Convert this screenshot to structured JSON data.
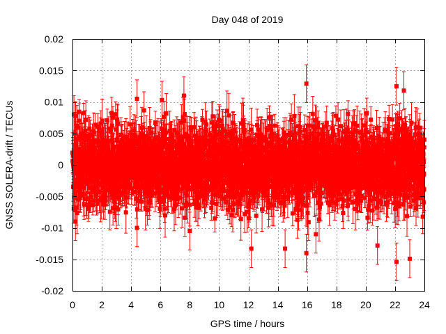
{
  "chart_data": {
    "type": "scatter",
    "title": "Day 048 of 2019",
    "xlabel": "GPS time / hours",
    "ylabel": "GNSS SOLERA-drift / TECUs",
    "xlim": [
      0,
      24
    ],
    "ylim": [
      -0.02,
      0.02
    ],
    "x_ticks": [
      0,
      2,
      4,
      6,
      8,
      10,
      12,
      14,
      16,
      18,
      20,
      22,
      24
    ],
    "x_tick_labels": [
      "0",
      "2",
      "4",
      "6",
      "8",
      "10",
      "12",
      "14",
      "16",
      "18",
      "20",
      "22",
      "24"
    ],
    "y_ticks": [
      -0.02,
      -0.015,
      -0.01,
      -0.005,
      0,
      0.005,
      0.01,
      0.015,
      0.02
    ],
    "y_tick_labels": [
      "-0.02",
      "-0.015",
      "-0.01",
      "-0.005",
      "0",
      "0.005",
      "0.01",
      "0.015",
      "0.02"
    ],
    "grid": true,
    "series": [
      {
        "name": "SOLERA drift",
        "color": "#ff0000",
        "marker": "square",
        "error_bars": true,
        "error_bar_typical": 0.0025,
        "n_points_estimated": 2880,
        "core_spread_std": 0.0032,
        "notable_points": [
          {
            "x": 0.1,
            "y": 0.008
          },
          {
            "x": 0.2,
            "y": -0.009
          },
          {
            "x": 4.4,
            "y": 0.0105
          },
          {
            "x": 4.4,
            "y": -0.01
          },
          {
            "x": 6.1,
            "y": 0.0103
          },
          {
            "x": 7.6,
            "y": 0.011
          },
          {
            "x": 8.0,
            "y": -0.0105
          },
          {
            "x": 12.2,
            "y": -0.0133
          },
          {
            "x": 14.5,
            "y": -0.0133
          },
          {
            "x": 15.95,
            "y": 0.0129
          },
          {
            "x": 15.95,
            "y": -0.014
          },
          {
            "x": 16.6,
            "y": -0.011
          },
          {
            "x": 20.8,
            "y": -0.0128
          },
          {
            "x": 22.1,
            "y": 0.0125
          },
          {
            "x": 22.1,
            "y": -0.0154
          },
          {
            "x": 22.6,
            "y": 0.0118
          },
          {
            "x": 23.0,
            "y": -0.0149
          }
        ]
      }
    ]
  }
}
